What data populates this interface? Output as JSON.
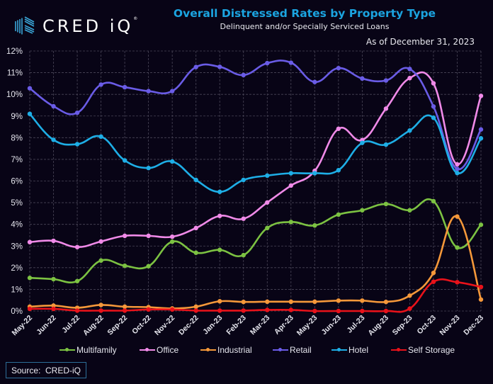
{
  "header": {
    "logo_text": "CRED iQ",
    "logo_mark": "®",
    "title": "Overall Distressed Rates by Property Type",
    "subtitle": "Delinquent and/or Specially Serviced Loans",
    "as_of": "As of December 31, 2023"
  },
  "source": "Source:  CRED-iQ",
  "colors": {
    "background": "#080416",
    "title": "#1ba4e0",
    "grid": "#4a4658"
  },
  "chart_data": {
    "type": "line",
    "title": "Overall Distressed Rates by Property Type",
    "subtitle": "Delinquent and/or Specially Serviced Loans",
    "xlabel": "",
    "ylabel": "",
    "ylim": [
      0,
      12
    ],
    "yticks": [
      0,
      1,
      2,
      3,
      4,
      5,
      6,
      7,
      8,
      9,
      10,
      11,
      12
    ],
    "ytick_labels": [
      "0%",
      "1%",
      "2%",
      "3%",
      "4%",
      "5%",
      "6%",
      "7%",
      "8%",
      "9%",
      "10%",
      "11%",
      "12%"
    ],
    "grid": true,
    "legend_position": "bottom",
    "categories": [
      "May-22",
      "Jun-22",
      "Jul-22",
      "Aug-22",
      "Sep-22",
      "Oct-22",
      "Nov-22",
      "Dec-22",
      "Jan-23",
      "Feb-23",
      "Mar-23",
      "Apr-23",
      "May-23",
      "Jun-23",
      "Jul-23",
      "Aug-23",
      "Sep-23",
      "Oct-23",
      "Nov-23",
      "Dec-23"
    ],
    "series": [
      {
        "name": "Multifamily",
        "color": "#7cc242",
        "values": [
          1.53,
          1.47,
          1.38,
          2.33,
          2.09,
          2.07,
          3.2,
          2.69,
          2.82,
          2.58,
          3.83,
          4.11,
          3.95,
          4.45,
          4.65,
          4.94,
          4.65,
          5.07,
          2.93,
          3.98
        ]
      },
      {
        "name": "Office",
        "color": "#f08ae8",
        "values": [
          3.18,
          3.24,
          2.95,
          3.21,
          3.47,
          3.47,
          3.43,
          3.83,
          4.39,
          4.26,
          5.01,
          5.79,
          6.47,
          8.41,
          7.89,
          9.34,
          10.75,
          10.51,
          6.77,
          9.93
        ]
      },
      {
        "name": "Industrial",
        "color": "#f5983a",
        "values": [
          0.2,
          0.25,
          0.15,
          0.28,
          0.2,
          0.18,
          0.12,
          0.2,
          0.45,
          0.42,
          0.43,
          0.43,
          0.43,
          0.48,
          0.48,
          0.42,
          0.71,
          1.76,
          4.36,
          0.53
        ]
      },
      {
        "name": "Retail",
        "color": "#6a5ce6",
        "values": [
          10.28,
          9.45,
          9.15,
          10.45,
          10.33,
          10.15,
          10.15,
          11.26,
          11.27,
          10.89,
          11.44,
          11.46,
          10.57,
          11.21,
          10.73,
          10.64,
          11.17,
          9.44,
          6.56,
          8.38
        ]
      },
      {
        "name": "Hotel",
        "color": "#1eaee6",
        "values": [
          9.1,
          7.9,
          7.7,
          8.05,
          6.95,
          6.6,
          6.9,
          6.05,
          5.5,
          6.05,
          6.25,
          6.36,
          6.36,
          6.5,
          7.76,
          7.68,
          8.33,
          8.92,
          6.37,
          7.97
        ]
      },
      {
        "name": "Self Storage",
        "color": "#e8121a",
        "values": [
          0.1,
          0.1,
          0.02,
          0.02,
          0.02,
          0.07,
          0.07,
          0.02,
          0.02,
          0.02,
          0.05,
          0.05,
          0.0,
          0.0,
          0.0,
          0.0,
          0.11,
          1.35,
          1.33,
          1.11
        ]
      }
    ]
  }
}
